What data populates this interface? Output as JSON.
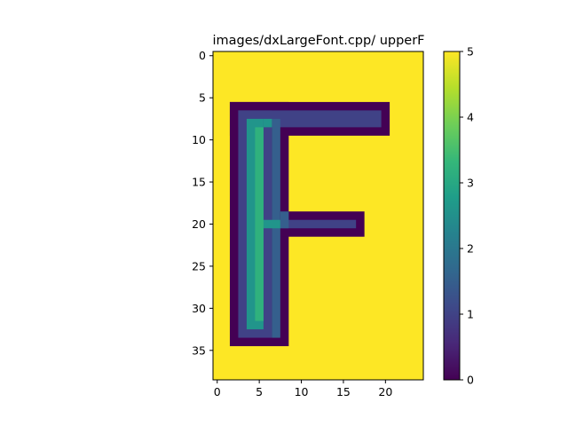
{
  "chart_data": {
    "type": "heatmap",
    "title": "images/dxLargeFont.cpp/ upperF",
    "xlabel": "",
    "ylabel": "",
    "grid": false,
    "n_cols": 25,
    "n_rows": 39,
    "xlim": [
      -0.5,
      24.5
    ],
    "ylim": [
      38.5,
      -0.5
    ],
    "xticks": [
      0,
      5,
      10,
      15,
      20
    ],
    "yticks": [
      0,
      5,
      10,
      15,
      20,
      25,
      30,
      35
    ],
    "colorbar": {
      "min": 0,
      "max": 5,
      "ticks": [
        0,
        1,
        2,
        3,
        4,
        5
      ]
    },
    "colormap": [
      "#440154",
      "#482878",
      "#3e4989",
      "#31688e",
      "#26828e",
      "#1f9e89",
      "#35b779",
      "#6ece58",
      "#b5de2b",
      "#fde725"
    ],
    "background_value": 5,
    "regions": [
      {
        "value": 0,
        "rects": [
          [
            2,
            6,
            19,
            4
          ],
          [
            2,
            6,
            7,
            29
          ],
          [
            8,
            19,
            10,
            3
          ]
        ]
      },
      {
        "value": 1,
        "rects": [
          [
            3,
            7,
            17,
            2
          ],
          [
            3,
            7,
            4,
            27
          ],
          [
            8,
            20,
            9,
            1
          ]
        ]
      },
      {
        "value": 1.5,
        "rects": [
          [
            7,
            8,
            1,
            26
          ],
          [
            8,
            19,
            1,
            2
          ]
        ]
      },
      {
        "value": 2.6,
        "rects": [
          [
            4,
            8,
            2,
            25
          ],
          [
            6,
            8,
            1,
            1
          ],
          [
            6,
            20,
            2,
            1
          ]
        ]
      },
      {
        "value": 3.2,
        "rects": [
          [
            5,
            9,
            1,
            23
          ]
        ]
      }
    ]
  }
}
